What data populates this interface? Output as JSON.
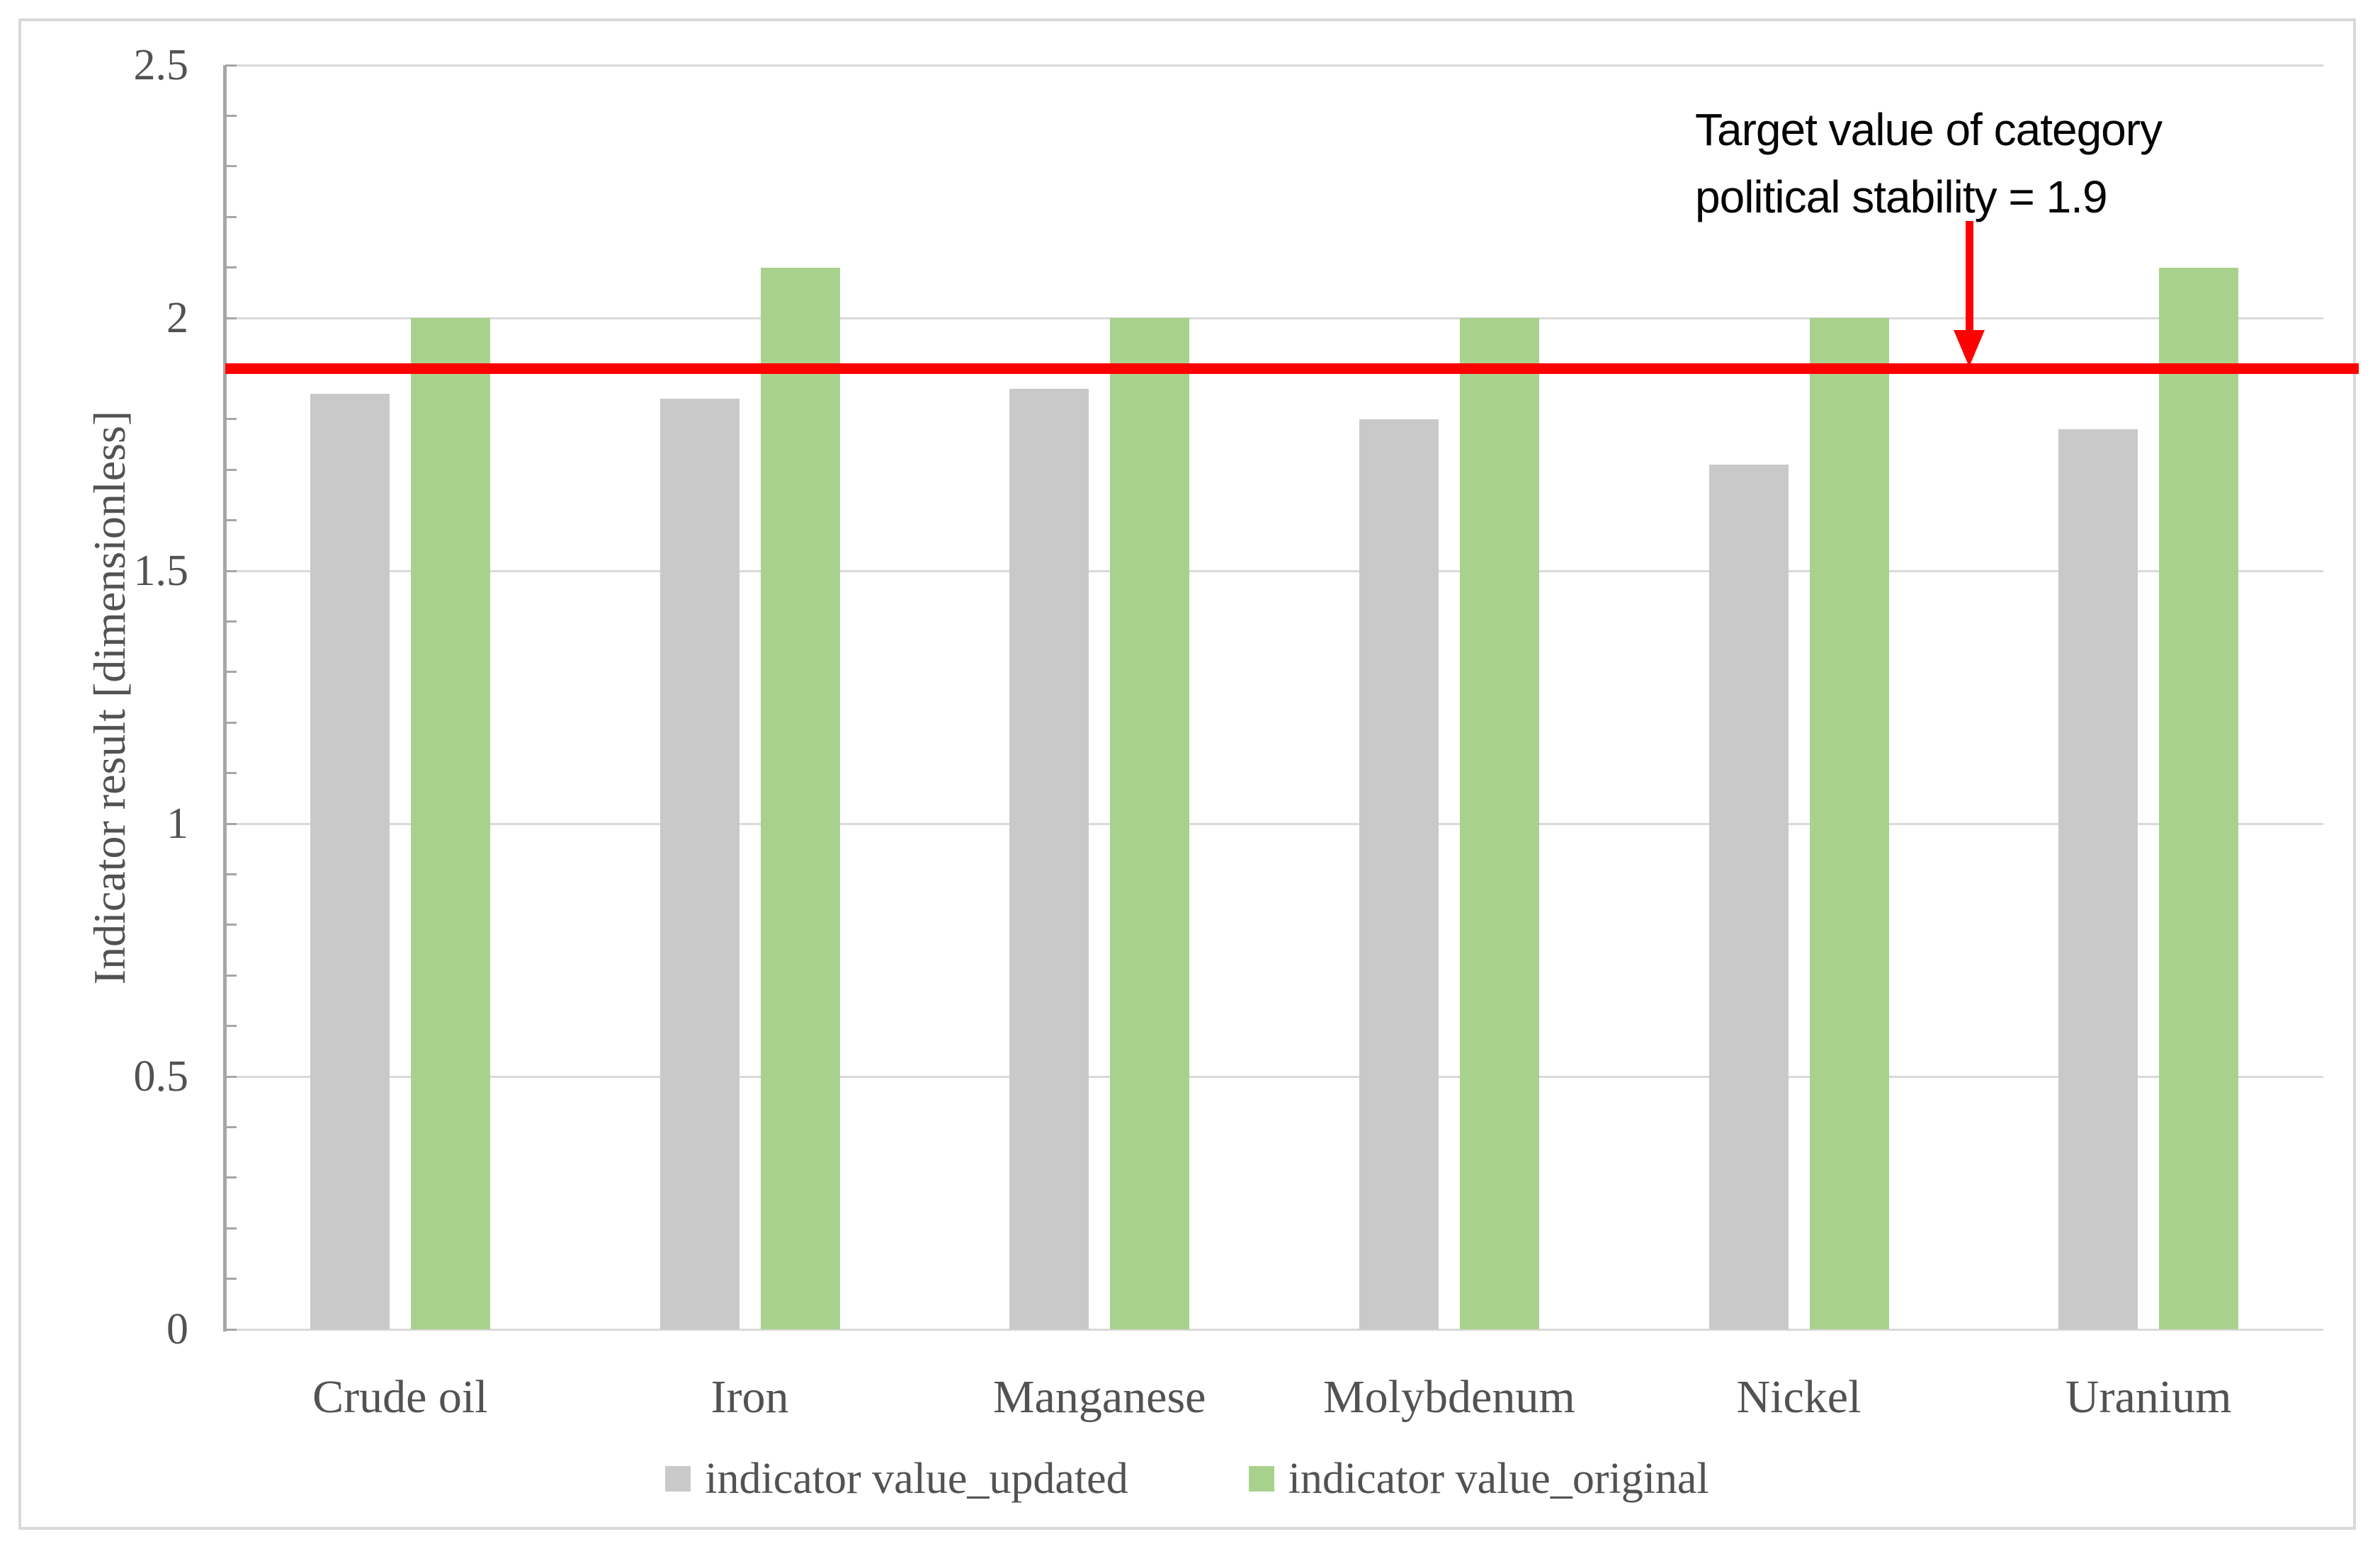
{
  "chart_data": {
    "type": "bar",
    "categories": [
      "Crude oil",
      "Iron",
      "Manganese",
      "Molybdenum",
      "Nickel",
      "Uranium"
    ],
    "series": [
      {
        "name": "indicator value_updated",
        "color": "#C9C9C9",
        "values": [
          1.85,
          1.84,
          1.86,
          1.8,
          1.71,
          1.78
        ]
      },
      {
        "name": "indicator value_original",
        "color": "#A9D18E",
        "values": [
          2.0,
          2.1,
          2.0,
          2.0,
          2.0,
          2.1
        ]
      }
    ],
    "title": "",
    "xlabel": "",
    "ylabel": "Indicator result [dimensionless]",
    "ylim": [
      0,
      2.5
    ],
    "yticks": [
      {
        "value": 2.5,
        "label": "2.5"
      },
      {
        "value": 2.0,
        "label": "2"
      },
      {
        "value": 1.5,
        "label": "1.5"
      },
      {
        "value": 1.0,
        "label": "1"
      },
      {
        "value": 0.5,
        "label": "0.5"
      },
      {
        "value": 0.0,
        "label": "0"
      }
    ],
    "minor_tick_step": 0.1,
    "grid": true,
    "legend_position": "bottom-center",
    "target_line": {
      "value": 1.9,
      "color": "#FF0000"
    }
  },
  "annotation": {
    "line1": "Target value of category",
    "line2": "political stability = 1.9",
    "arrow_color": "#FF0000"
  },
  "colors": {
    "background": "#FFFFFF",
    "frame_border": "#D9D9D9",
    "gridline": "#D9D9D9",
    "axis_line": "#A6A6A6",
    "axis_text": "#525252",
    "bar_updated": "#C9C9C9",
    "bar_original": "#A9D18E",
    "target_line": "#FF0000",
    "annotation_text": "#050505"
  }
}
